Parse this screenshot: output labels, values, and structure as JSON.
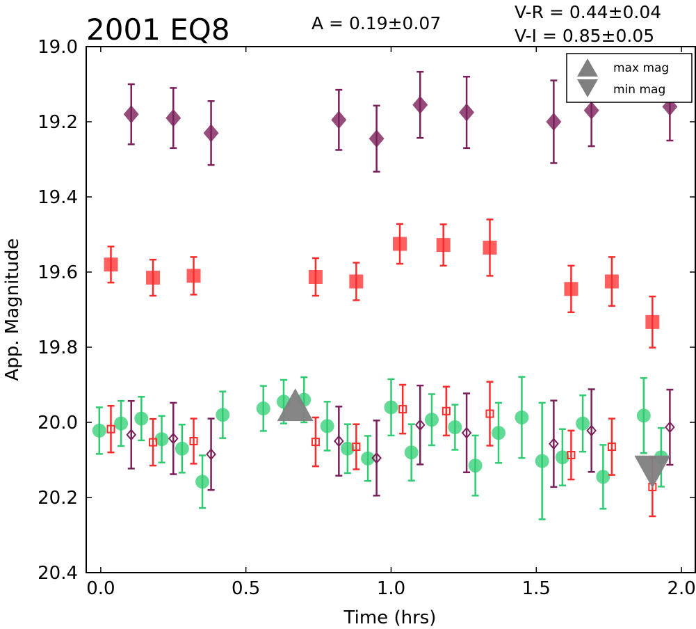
{
  "chart_data": {
    "type": "scatter",
    "title": "2001 EQ8",
    "xlabel": "Time (hrs)",
    "ylabel": "App. Magnitude",
    "xlim": [
      -0.05,
      2.05
    ],
    "ylim": [
      20.4,
      19.0
    ],
    "y_inverted": true,
    "xticks": [
      "0.0",
      "0.5",
      "1.0",
      "1.5",
      "2.0"
    ],
    "yticks": [
      "19.0",
      "19.2",
      "19.4",
      "19.6",
      "19.8",
      "20.0",
      "20.2",
      "20.4"
    ],
    "annotations": {
      "amplitude": "A  = 0.19±0.07",
      "vr": "V-R = 0.44±0.04",
      "vi": "V-I  = 0.85±0.05"
    },
    "legend": {
      "placement": "top-right",
      "entries": [
        {
          "label": "max mag",
          "marker": "triangle-up",
          "color": "#808080"
        },
        {
          "label": "min mag",
          "marker": "triangle-down",
          "color": "#808080"
        }
      ]
    },
    "colors": {
      "green": "#2ecc71",
      "red": "#ff2a2a",
      "purple": "#7a1f5a",
      "gray": "#808080"
    },
    "series": [
      {
        "marker": "diamond",
        "color": "#7a1f5a",
        "points": [
          {
            "x": 0.105,
            "y": 19.18,
            "err": 0.08
          },
          {
            "x": 0.25,
            "y": 19.19,
            "err": 0.08
          },
          {
            "x": 0.38,
            "y": 19.23,
            "err": 0.085
          },
          {
            "x": 0.82,
            "y": 19.195,
            "err": 0.08
          },
          {
            "x": 0.95,
            "y": 19.245,
            "err": 0.088
          },
          {
            "x": 1.1,
            "y": 19.155,
            "err": 0.088
          },
          {
            "x": 1.26,
            "y": 19.175,
            "err": 0.095
          },
          {
            "x": 1.56,
            "y": 19.2,
            "err": 0.11
          },
          {
            "x": 1.69,
            "y": 19.17,
            "err": 0.095
          },
          {
            "x": 1.96,
            "y": 19.16,
            "err": 0.09
          }
        ]
      },
      {
        "marker": "square",
        "color": "#ff2a2a",
        "points": [
          {
            "x": 0.035,
            "y": 19.58,
            "err": 0.048
          },
          {
            "x": 0.18,
            "y": 19.615,
            "err": 0.048
          },
          {
            "x": 0.32,
            "y": 19.61,
            "err": 0.05
          },
          {
            "x": 0.74,
            "y": 19.613,
            "err": 0.05
          },
          {
            "x": 0.88,
            "y": 19.625,
            "err": 0.05
          },
          {
            "x": 1.03,
            "y": 19.525,
            "err": 0.053
          },
          {
            "x": 1.18,
            "y": 19.528,
            "err": 0.055
          },
          {
            "x": 1.34,
            "y": 19.535,
            "err": 0.075
          },
          {
            "x": 1.62,
            "y": 19.645,
            "err": 0.062
          },
          {
            "x": 1.76,
            "y": 19.625,
            "err": 0.065
          },
          {
            "x": 1.9,
            "y": 19.733,
            "err": 0.068
          }
        ]
      },
      {
        "marker": "circle",
        "color": "#2ecc71",
        "points": [
          {
            "x": -0.005,
            "y": 20.022,
            "err": 0.062
          },
          {
            "x": 0.07,
            "y": 20.003,
            "err": 0.06
          },
          {
            "x": 0.14,
            "y": 19.99,
            "err": 0.058
          },
          {
            "x": 0.21,
            "y": 20.045,
            "err": 0.062
          },
          {
            "x": 0.28,
            "y": 20.07,
            "err": 0.064
          },
          {
            "x": 0.35,
            "y": 20.158,
            "err": 0.07
          },
          {
            "x": 0.42,
            "y": 19.98,
            "err": 0.062
          },
          {
            "x": 0.56,
            "y": 19.963,
            "err": 0.06
          },
          {
            "x": 0.63,
            "y": 19.945,
            "err": 0.058
          },
          {
            "x": 0.7,
            "y": 19.94,
            "err": 0.06
          },
          {
            "x": 0.78,
            "y": 20.01,
            "err": 0.065
          },
          {
            "x": 0.85,
            "y": 20.07,
            "err": 0.065
          },
          {
            "x": 0.92,
            "y": 20.096,
            "err": 0.06
          },
          {
            "x": 1.0,
            "y": 19.96,
            "err": 0.075
          },
          {
            "x": 1.07,
            "y": 20.08,
            "err": 0.075
          },
          {
            "x": 1.14,
            "y": 19.993,
            "err": 0.068
          },
          {
            "x": 1.22,
            "y": 20.013,
            "err": 0.06
          },
          {
            "x": 1.29,
            "y": 20.115,
            "err": 0.08
          },
          {
            "x": 1.37,
            "y": 20.028,
            "err": 0.08
          },
          {
            "x": 1.45,
            "y": 19.987,
            "err": 0.108
          },
          {
            "x": 1.52,
            "y": 20.103,
            "err": 0.155
          },
          {
            "x": 1.59,
            "y": 20.093,
            "err": 0.075
          },
          {
            "x": 1.66,
            "y": 20.003,
            "err": 0.075
          },
          {
            "x": 1.73,
            "y": 20.145,
            "err": 0.085
          },
          {
            "x": 1.87,
            "y": 19.982,
            "err": 0.1
          },
          {
            "x": 1.93,
            "y": 20.093,
            "err": 0.078
          }
        ]
      },
      {
        "marker": "square-open",
        "color": "#ff2a2a",
        "points": [
          {
            "x": 0.035,
            "y": 20.018,
            "err": 0.062
          },
          {
            "x": 0.18,
            "y": 20.053,
            "err": 0.062
          },
          {
            "x": 0.32,
            "y": 20.05,
            "err": 0.06
          },
          {
            "x": 0.74,
            "y": 20.052,
            "err": 0.065
          },
          {
            "x": 0.88,
            "y": 20.065,
            "err": 0.06
          },
          {
            "x": 1.04,
            "y": 19.965,
            "err": 0.065
          },
          {
            "x": 1.19,
            "y": 19.97,
            "err": 0.065
          },
          {
            "x": 1.34,
            "y": 19.977,
            "err": 0.085
          },
          {
            "x": 1.62,
            "y": 20.087,
            "err": 0.065
          },
          {
            "x": 1.76,
            "y": 20.065,
            "err": 0.075
          },
          {
            "x": 1.9,
            "y": 20.172,
            "err": 0.078
          }
        ]
      },
      {
        "marker": "diamond-open",
        "color": "#7a1f5a",
        "points": [
          {
            "x": 0.105,
            "y": 20.033,
            "err": 0.09
          },
          {
            "x": 0.25,
            "y": 20.043,
            "err": 0.095
          },
          {
            "x": 0.38,
            "y": 20.085,
            "err": 0.095
          },
          {
            "x": 0.82,
            "y": 20.05,
            "err": 0.092
          },
          {
            "x": 0.95,
            "y": 20.095,
            "err": 0.1
          },
          {
            "x": 1.1,
            "y": 20.007,
            "err": 0.105
          },
          {
            "x": 1.26,
            "y": 20.028,
            "err": 0.105
          },
          {
            "x": 1.56,
            "y": 20.057,
            "err": 0.115
          },
          {
            "x": 1.69,
            "y": 20.022,
            "err": 0.11
          },
          {
            "x": 1.96,
            "y": 20.013,
            "err": 0.1
          }
        ]
      },
      {
        "marker": "triangle-up",
        "color": "#808080",
        "points": [
          {
            "x": 0.67,
            "y": 19.965
          }
        ]
      },
      {
        "marker": "triangle-down",
        "color": "#808080",
        "points": [
          {
            "x": 1.9,
            "y": 20.12
          }
        ]
      }
    ]
  }
}
